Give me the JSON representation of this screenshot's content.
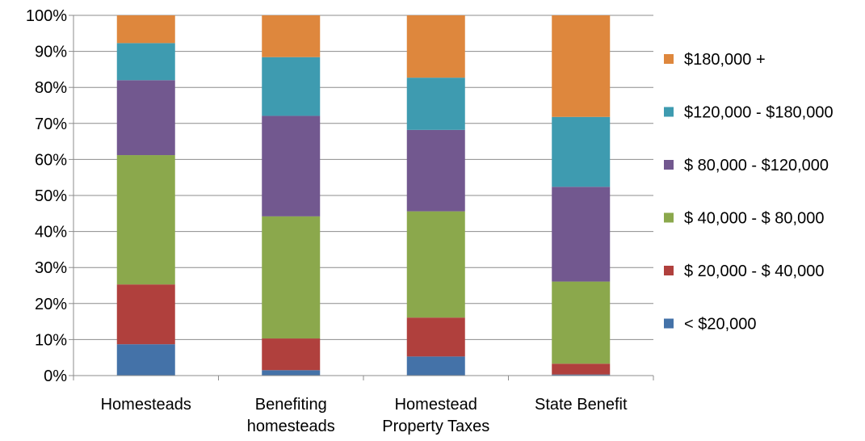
{
  "chart_data": {
    "type": "bar",
    "stacked": true,
    "percent": true,
    "categories": [
      [
        "Homesteads"
      ],
      [
        "Benefiting",
        "homesteads"
      ],
      [
        "Homestead",
        "Property Taxes"
      ],
      [
        "State Benefit"
      ]
    ],
    "series": [
      {
        "name": "< $20,000",
        "color": "#4472A8",
        "values": [
          8.7,
          1.5,
          5.3,
          0.3
        ]
      },
      {
        "name": "$ 20,000 - $ 40,000",
        "color": "#B0403D",
        "values": [
          16.6,
          8.8,
          10.8,
          3.0
        ]
      },
      {
        "name": "$ 40,000 - $ 80,000",
        "color": "#8BA84C",
        "values": [
          35.9,
          33.9,
          29.5,
          22.8
        ]
      },
      {
        "name": "$ 80,000 - $120,000",
        "color": "#72588F",
        "values": [
          20.8,
          27.9,
          22.6,
          26.3
        ]
      },
      {
        "name": "$120,000 - $180,000",
        "color": "#3E9BB0",
        "values": [
          10.3,
          16.3,
          14.5,
          19.4
        ]
      },
      {
        "name": "$180,000 +",
        "color": "#DE873D",
        "values": [
          7.7,
          11.6,
          17.3,
          28.2
        ]
      }
    ],
    "y_ticks": [
      "0%",
      "10%",
      "20%",
      "30%",
      "40%",
      "50%",
      "60%",
      "70%",
      "80%",
      "90%",
      "100%"
    ],
    "ylim": [
      0,
      100
    ],
    "grid": true,
    "legend_position": "right"
  }
}
